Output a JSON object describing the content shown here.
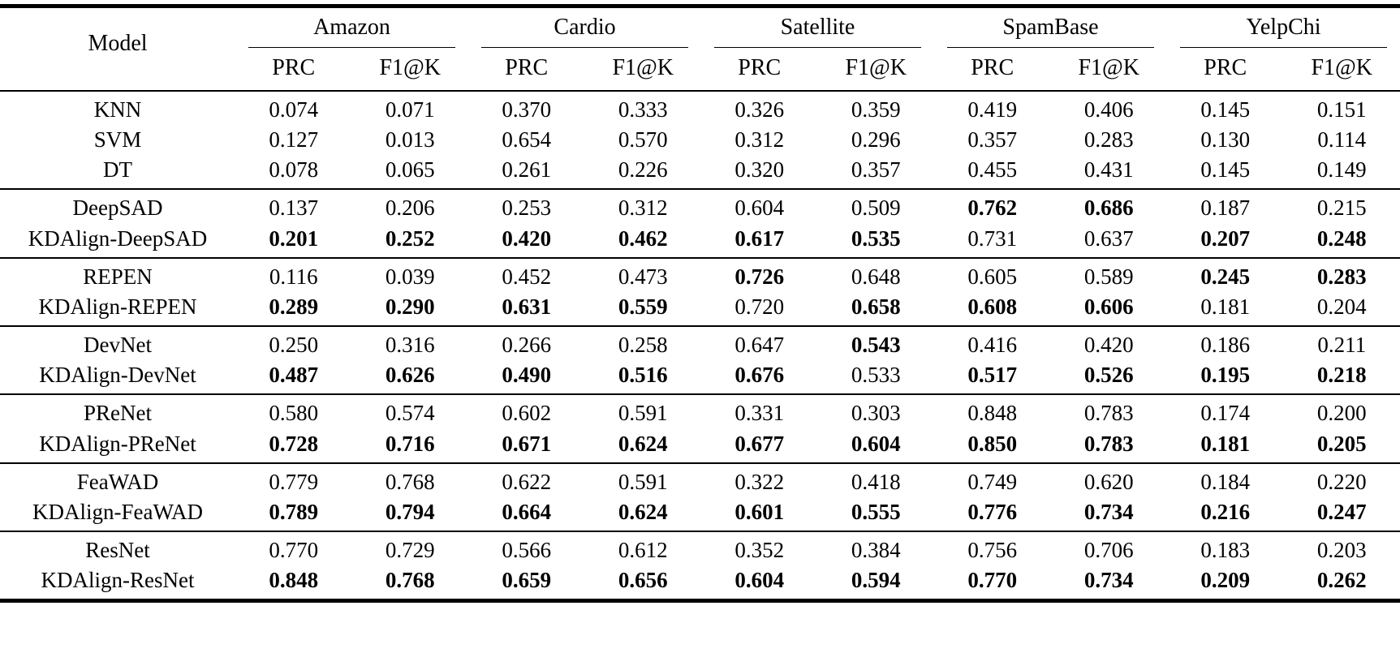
{
  "colors": {
    "background": "#ffffff",
    "text": "#000000",
    "rule": "#000000"
  },
  "table": {
    "model_header": "Model",
    "metric_headers": [
      "PRC",
      "F1@K"
    ],
    "datasets": [
      "Amazon",
      "Cardio",
      "Satellite",
      "SpamBase",
      "YelpChi"
    ],
    "groups": [
      {
        "rows": [
          {
            "model": "KNN",
            "values": [
              "0.074",
              "0.071",
              "0.370",
              "0.333",
              "0.326",
              "0.359",
              "0.419",
              "0.406",
              "0.145",
              "0.151"
            ],
            "bold": [
              false,
              false,
              false,
              false,
              false,
              false,
              false,
              false,
              false,
              false
            ]
          },
          {
            "model": "SVM",
            "values": [
              "0.127",
              "0.013",
              "0.654",
              "0.570",
              "0.312",
              "0.296",
              "0.357",
              "0.283",
              "0.130",
              "0.114"
            ],
            "bold": [
              false,
              false,
              false,
              false,
              false,
              false,
              false,
              false,
              false,
              false
            ]
          },
          {
            "model": "DT",
            "values": [
              "0.078",
              "0.065",
              "0.261",
              "0.226",
              "0.320",
              "0.357",
              "0.455",
              "0.431",
              "0.145",
              "0.149"
            ],
            "bold": [
              false,
              false,
              false,
              false,
              false,
              false,
              false,
              false,
              false,
              false
            ]
          }
        ]
      },
      {
        "rows": [
          {
            "model": "DeepSAD",
            "values": [
              "0.137",
              "0.206",
              "0.253",
              "0.312",
              "0.604",
              "0.509",
              "0.762",
              "0.686",
              "0.187",
              "0.215"
            ],
            "bold": [
              false,
              false,
              false,
              false,
              false,
              false,
              true,
              true,
              false,
              false
            ]
          },
          {
            "model": "KDAlign-DeepSAD",
            "values": [
              "0.201",
              "0.252",
              "0.420",
              "0.462",
              "0.617",
              "0.535",
              "0.731",
              "0.637",
              "0.207",
              "0.248"
            ],
            "bold": [
              true,
              true,
              true,
              true,
              true,
              true,
              false,
              false,
              true,
              true
            ]
          }
        ]
      },
      {
        "rows": [
          {
            "model": "REPEN",
            "values": [
              "0.116",
              "0.039",
              "0.452",
              "0.473",
              "0.726",
              "0.648",
              "0.605",
              "0.589",
              "0.245",
              "0.283"
            ],
            "bold": [
              false,
              false,
              false,
              false,
              true,
              false,
              false,
              false,
              true,
              true
            ]
          },
          {
            "model": "KDAlign-REPEN",
            "values": [
              "0.289",
              "0.290",
              "0.631",
              "0.559",
              "0.720",
              "0.658",
              "0.608",
              "0.606",
              "0.181",
              "0.204"
            ],
            "bold": [
              true,
              true,
              true,
              true,
              false,
              true,
              true,
              true,
              false,
              false
            ]
          }
        ]
      },
      {
        "rows": [
          {
            "model": "DevNet",
            "values": [
              "0.250",
              "0.316",
              "0.266",
              "0.258",
              "0.647",
              "0.543",
              "0.416",
              "0.420",
              "0.186",
              "0.211"
            ],
            "bold": [
              false,
              false,
              false,
              false,
              false,
              true,
              false,
              false,
              false,
              false
            ]
          },
          {
            "model": "KDAlign-DevNet",
            "values": [
              "0.487",
              "0.626",
              "0.490",
              "0.516",
              "0.676",
              "0.533",
              "0.517",
              "0.526",
              "0.195",
              "0.218"
            ],
            "bold": [
              true,
              true,
              true,
              true,
              true,
              false,
              true,
              true,
              true,
              true
            ]
          }
        ]
      },
      {
        "rows": [
          {
            "model": "PReNet",
            "values": [
              "0.580",
              "0.574",
              "0.602",
              "0.591",
              "0.331",
              "0.303",
              "0.848",
              "0.783",
              "0.174",
              "0.200"
            ],
            "bold": [
              false,
              false,
              false,
              false,
              false,
              false,
              false,
              false,
              false,
              false
            ]
          },
          {
            "model": "KDAlign-PReNet",
            "values": [
              "0.728",
              "0.716",
              "0.671",
              "0.624",
              "0.677",
              "0.604",
              "0.850",
              "0.783",
              "0.181",
              "0.205"
            ],
            "bold": [
              true,
              true,
              true,
              true,
              true,
              true,
              true,
              true,
              true,
              true
            ]
          }
        ]
      },
      {
        "rows": [
          {
            "model": "FeaWAD",
            "values": [
              "0.779",
              "0.768",
              "0.622",
              "0.591",
              "0.322",
              "0.418",
              "0.749",
              "0.620",
              "0.184",
              "0.220"
            ],
            "bold": [
              false,
              false,
              false,
              false,
              false,
              false,
              false,
              false,
              false,
              false
            ]
          },
          {
            "model": "KDAlign-FeaWAD",
            "values": [
              "0.789",
              "0.794",
              "0.664",
              "0.624",
              "0.601",
              "0.555",
              "0.776",
              "0.734",
              "0.216",
              "0.247"
            ],
            "bold": [
              true,
              true,
              true,
              true,
              true,
              true,
              true,
              true,
              true,
              true
            ]
          }
        ]
      },
      {
        "rows": [
          {
            "model": "ResNet",
            "values": [
              "0.770",
              "0.729",
              "0.566",
              "0.612",
              "0.352",
              "0.384",
              "0.756",
              "0.706",
              "0.183",
              "0.203"
            ],
            "bold": [
              false,
              false,
              false,
              false,
              false,
              false,
              false,
              false,
              false,
              false
            ]
          },
          {
            "model": "KDAlign-ResNet",
            "values": [
              "0.848",
              "0.768",
              "0.659",
              "0.656",
              "0.604",
              "0.594",
              "0.770",
              "0.734",
              "0.209",
              "0.262"
            ],
            "bold": [
              true,
              true,
              true,
              true,
              true,
              true,
              true,
              true,
              true,
              true
            ]
          }
        ]
      }
    ]
  }
}
